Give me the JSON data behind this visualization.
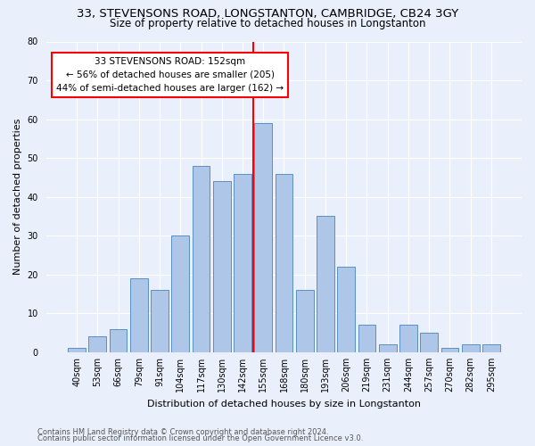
{
  "title_line1": "33, STEVENSONS ROAD, LONGSTANTON, CAMBRIDGE, CB24 3GY",
  "title_line2": "Size of property relative to detached houses in Longstanton",
  "xlabel": "Distribution of detached houses by size in Longstanton",
  "ylabel": "Number of detached properties",
  "bar_values": [
    1,
    4,
    6,
    19,
    16,
    30,
    48,
    44,
    46,
    59,
    46,
    16,
    35,
    22,
    7,
    2,
    7,
    5,
    1,
    2,
    2
  ],
  "bar_labels": [
    "40sqm",
    "53sqm",
    "66sqm",
    "79sqm",
    "91sqm",
    "104sqm",
    "117sqm",
    "130sqm",
    "142sqm",
    "155sqm",
    "168sqm",
    "180sqm",
    "193sqm",
    "206sqm",
    "219sqm",
    "231sqm",
    "244sqm",
    "257sqm",
    "270sqm",
    "282sqm",
    "295sqm"
  ],
  "bar_color": "#aec6e8",
  "bar_edgecolor": "#5a8fc2",
  "annotation_line1": "33 STEVENSONS ROAD: 152sqm",
  "annotation_line2": "← 56% of detached houses are smaller (205)",
  "annotation_line3": "44% of semi-detached houses are larger (162) →",
  "annotation_box_color": "white",
  "annotation_box_edgecolor": "red",
  "vline_color": "red",
  "vline_x": 8.5,
  "ylim": [
    0,
    80
  ],
  "yticks": [
    0,
    10,
    20,
    30,
    40,
    50,
    60,
    70,
    80
  ],
  "bg_color": "#eaf0fb",
  "footer_line1": "Contains HM Land Registry data © Crown copyright and database right 2024.",
  "footer_line2": "Contains public sector information licensed under the Open Government Licence v3.0.",
  "title_fontsize": 9.5,
  "subtitle_fontsize": 8.5,
  "axis_label_fontsize": 8,
  "tick_fontsize": 7,
  "annotation_fontsize": 7.5,
  "footer_fontsize": 6
}
